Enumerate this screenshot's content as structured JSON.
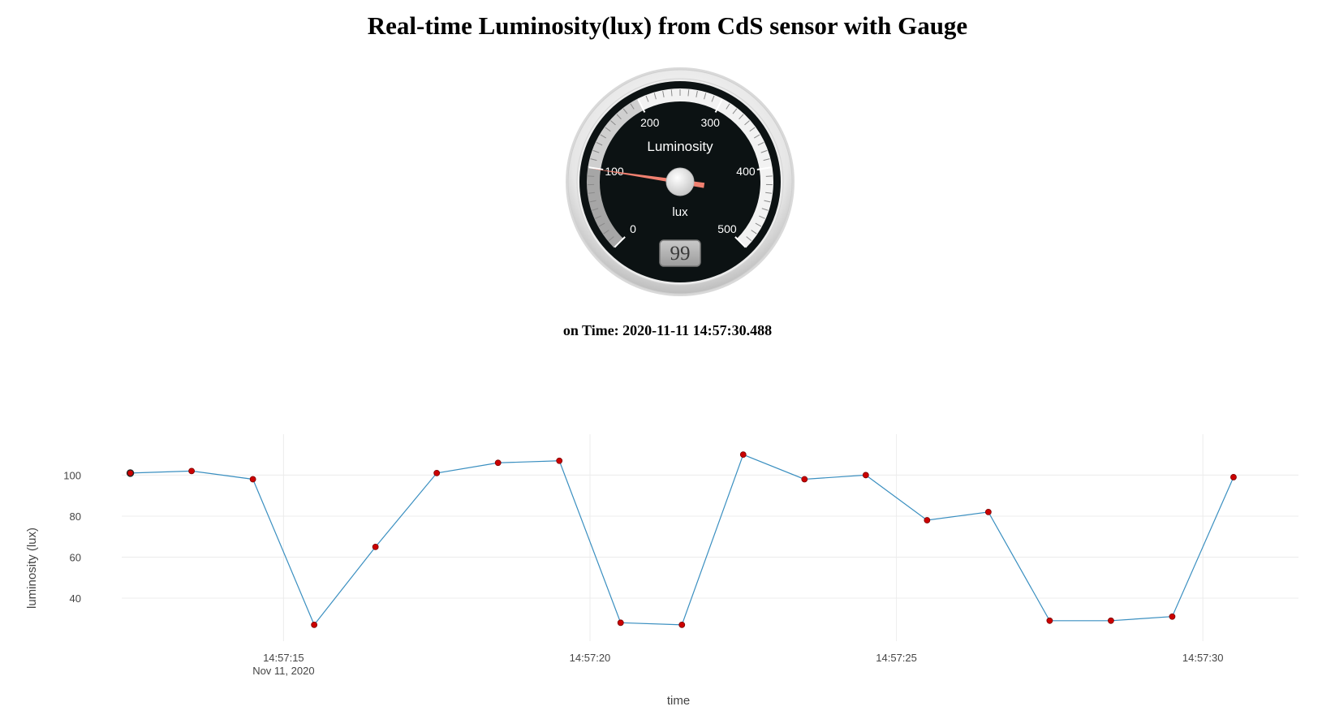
{
  "title": "Real-time Luminosity(lux) from CdS sensor with Gauge",
  "gauge": {
    "label": "Luminosity",
    "units": "lux",
    "min": 0,
    "max": 500,
    "value": 99,
    "value_display": "99",
    "major_ticks": [
      "0",
      "100",
      "200",
      "300",
      "400",
      "500"
    ],
    "highlights": [
      {
        "from": 0,
        "to": 100,
        "color": "#a6a6a6"
      },
      {
        "from": 100,
        "to": 200,
        "color": "#cfcfcf"
      },
      {
        "from": 200,
        "to": 500,
        "color": "#f2f2f2"
      }
    ],
    "needle_color": "#f08070"
  },
  "time_label": "on Time: 2020-11-11 14:57:30.488",
  "chart_data": {
    "type": "line",
    "xlabel": "time",
    "ylabel": "luminosity (lux)",
    "x_tick_labels": [
      {
        "t": 15,
        "line1": "14:57:15",
        "line2": "Nov 11, 2020"
      },
      {
        "t": 20,
        "line1": "14:57:20",
        "line2": ""
      },
      {
        "t": 25,
        "line1": "14:57:25",
        "line2": ""
      },
      {
        "t": 30,
        "line1": "14:57:30",
        "line2": ""
      }
    ],
    "y_ticks": [
      40,
      60,
      80,
      100
    ],
    "xlim": [
      "14:57:12.36",
      "14:57:31.56"
    ],
    "ylim": [
      21,
      116
    ],
    "grid": true,
    "line_color": "#3a8fc0",
    "marker_color": "#cc0000",
    "series": [
      {
        "x": [
          "14:57:12.5",
          "14:57:13.5",
          "14:57:14.5",
          "14:57:15.5",
          "14:57:16.5",
          "14:57:17.5",
          "14:57:18.5",
          "14:57:19.5",
          "14:57:20.5",
          "14:57:21.5",
          "14:57:22.5",
          "14:57:23.5",
          "14:57:24.5",
          "14:57:25.5",
          "14:57:26.5",
          "14:57:27.5",
          "14:57:28.5",
          "14:57:29.5",
          "14:57:30.5"
        ],
        "values": [
          101,
          102,
          98,
          27,
          65,
          101,
          106,
          107,
          28,
          27,
          110,
          98,
          100,
          78,
          82,
          29,
          29,
          31,
          99
        ]
      }
    ]
  }
}
